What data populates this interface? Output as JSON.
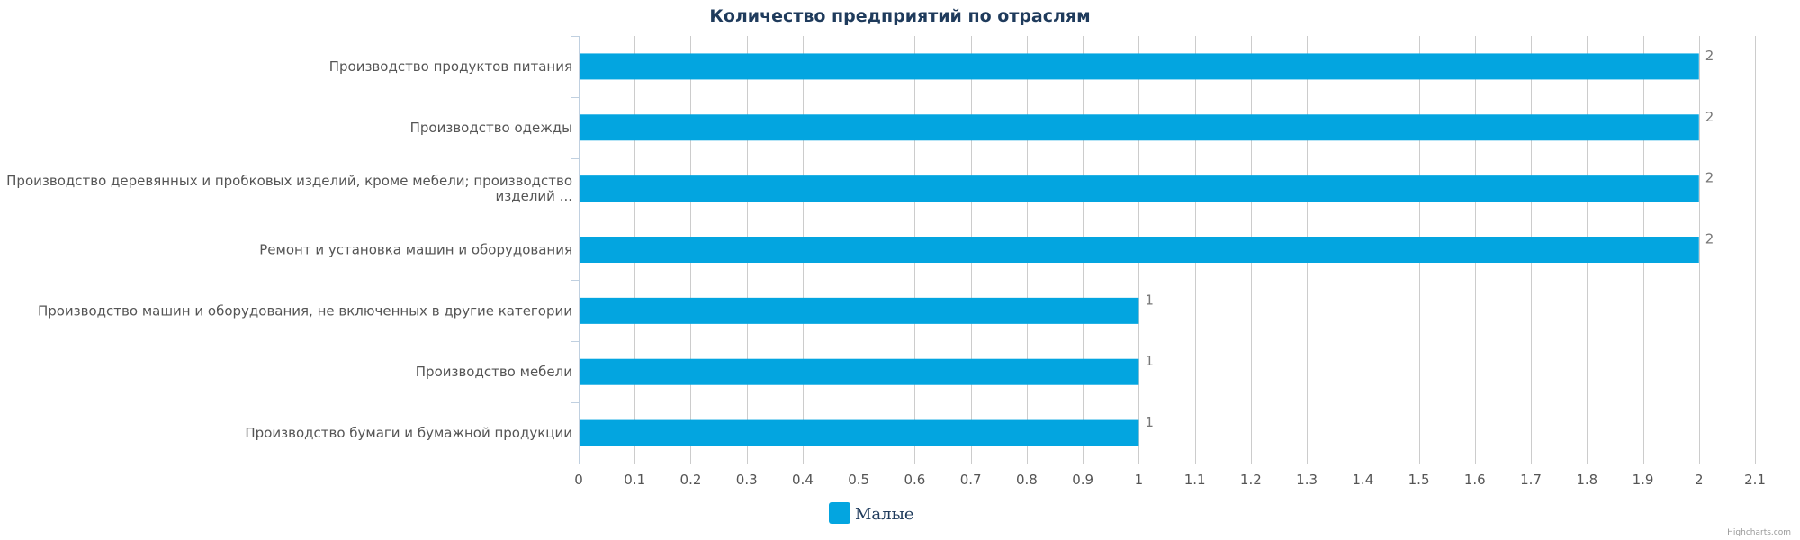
{
  "chart_data": {
    "type": "bar",
    "orientation": "horizontal",
    "title": "Количество предприятий по отраслям",
    "categories": [
      [
        "Производство продуктов питания"
      ],
      [
        "Производство одежды"
      ],
      [
        "Производство деревянных и пробковых изделий, кроме мебели; производство",
        "изделий ..."
      ],
      [
        "Ремонт и установка машин и оборудования"
      ],
      [
        "Производство машин и оборудования, не включенных в другие категории"
      ],
      [
        "Производство мебели"
      ],
      [
        "Производство бумаги и бумажной продукции"
      ]
    ],
    "series": [
      {
        "name": "Малые",
        "color": "#03a5e0",
        "values": [
          2,
          2,
          2,
          2,
          1,
          1,
          1
        ]
      }
    ],
    "xlim": [
      0,
      2.1
    ],
    "x_ticks": [
      "0",
      "0.1",
      "0.2",
      "0.3",
      "0.4",
      "0.5",
      "0.6",
      "0.7",
      "0.8",
      "0.9",
      "1",
      "1.1",
      "1.2",
      "1.3",
      "1.4",
      "1.5",
      "1.6",
      "1.7",
      "1.8",
      "1.9",
      "2",
      "2.1"
    ],
    "grid": true,
    "legend_position": "bottom-center",
    "data_labels": true
  },
  "credits": "Highcharts.com"
}
